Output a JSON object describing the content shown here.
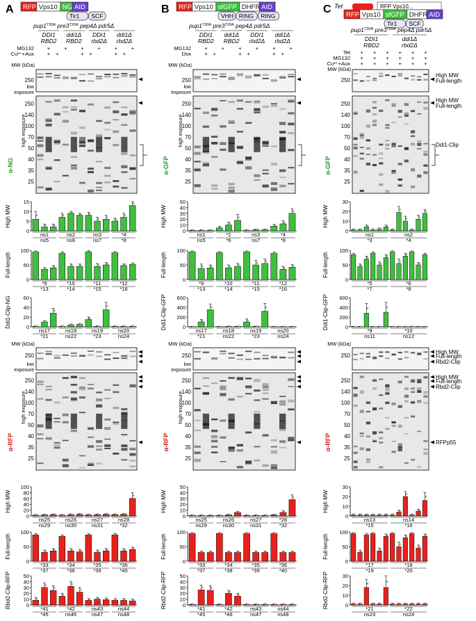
{
  "panels": [
    {
      "letter": "A",
      "construct": [
        {
          "text": "RFP",
          "color": "#e8211d",
          "text_color": "#ffffff"
        },
        {
          "text": "Vps10",
          "color": "#ffffff",
          "text_color": "#111111"
        },
        {
          "text": "NG",
          "color": "#3fbf3f",
          "text_color": "#ffffff"
        },
        {
          "text": "AID",
          "color": "#6a3fd0",
          "text_color": "#ffffff"
        }
      ],
      "extra_boxes": [
        "Tir1",
        "SCF"
      ],
      "strain": [
        "pup1",
        "T30A",
        " pre3",
        "T20A",
        " pep4Δ pdr5Δ"
      ],
      "groups": [
        "DDI1|RBD2",
        "ddi1Δ|RBD2",
        "DDI1|rbd2Δ",
        "ddi1Δ|rbd2Δ"
      ],
      "treatment_rows": [
        "MG132",
        "Cu²⁺+Aux"
      ],
      "treatment_signs": [
        [
          "",
          "+",
          "",
          "+"
        ],
        [
          "",
          "+",
          "+",
          ""
        ]
      ],
      "antibody_top": "α-NG",
      "antibody_bottom": "α-RFP",
      "mw_top": [
        "250"
      ],
      "mw_high": [
        "250",
        "140",
        "100",
        "70",
        "50",
        "40",
        "35",
        "25"
      ],
      "exposure_low": "low exposure",
      "exposure_high": "high exposure",
      "mw_label": "MW (kDa)",
      "band_labels_top": [],
      "band_labels_bottom": [],
      "charts": [
        {
          "ylabel": "High MW",
          "ymax": 15,
          "ticks": [
            0,
            5,
            10,
            15
          ],
          "color": "#3fbf3f",
          "values": [
            6,
            2,
            2,
            7,
            9,
            8,
            8,
            5,
            6,
            5,
            7,
            13
          ],
          "errors": [
            4,
            1.5,
            1.5,
            2,
            1,
            1,
            1.5,
            2,
            2,
            1.5,
            2,
            2
          ],
          "stats": [
            "ns1",
            "ns2",
            "ns3",
            "*4",
            "ns5",
            "ns6",
            "ns7",
            "*8"
          ]
        },
        {
          "ylabel": "Full-length",
          "ymax": 100,
          "ticks": [
            0,
            50,
            100
          ],
          "color": "#3fbf3f",
          "values": [
            95,
            35,
            40,
            90,
            45,
            45,
            95,
            45,
            50,
            92,
            48,
            52
          ],
          "errors": [
            3,
            6,
            8,
            5,
            8,
            8,
            4,
            10,
            8,
            4,
            6,
            5
          ],
          "stats": [
            "*9",
            "*10",
            "*11",
            "*12",
            "*13",
            "*14",
            "*15",
            "*16"
          ]
        },
        {
          "ylabel": "Ddi1-Clip-NG",
          "ymax": 60,
          "ticks": [
            0,
            20,
            40,
            60
          ],
          "color": "#3fbf3f",
          "values": [
            1,
            10,
            28,
            1,
            4,
            5,
            15,
            1,
            35,
            1,
            1,
            1
          ],
          "errors": [
            1,
            3,
            10,
            1,
            2,
            2,
            5,
            1,
            15,
            1,
            1,
            1
          ],
          "stats": [
            "ns17",
            "ns18",
            "ns19",
            "ns20",
            "*21",
            "ns22",
            "*23",
            "ns24"
          ]
        },
        {
          "ylabel": "High MW",
          "ymax": 100,
          "ticks": [
            0,
            20,
            40,
            60,
            80,
            100
          ],
          "color": "#e8211d",
          "values": [
            3,
            4,
            5,
            3,
            5,
            6,
            4,
            5,
            6,
            5,
            6,
            60
          ],
          "errors": [
            2,
            2,
            2,
            2,
            2,
            2,
            2,
            2,
            2,
            2,
            3,
            20
          ],
          "stats": [
            "ns25",
            "ns26",
            "ns27",
            "ns28",
            "ns29",
            "ns30",
            "ns31",
            "*32"
          ]
        },
        {
          "ylabel": "Full-length",
          "ymax": 100,
          "ticks": [
            0,
            50,
            100
          ],
          "color": "#e8211d",
          "values": [
            90,
            30,
            35,
            85,
            35,
            32,
            90,
            30,
            35,
            90,
            35,
            40
          ],
          "errors": [
            5,
            8,
            8,
            5,
            8,
            8,
            5,
            8,
            8,
            5,
            8,
            8
          ],
          "stats": [
            "*33",
            "*34",
            "*35",
            "*36",
            "*37",
            "*38",
            "*39",
            "*40"
          ]
        },
        {
          "ylabel": "Rbd2-Clip-RFP",
          "ymax": 50,
          "ticks": [
            0,
            10,
            20,
            30,
            40,
            50
          ],
          "color": "#e8211d",
          "values": [
            8,
            30,
            25,
            15,
            32,
            22,
            8,
            10,
            9,
            8,
            8,
            7
          ],
          "errors": [
            5,
            8,
            8,
            5,
            8,
            8,
            3,
            3,
            3,
            3,
            3,
            3
          ],
          "stats": [
            "*41",
            "*42",
            "ns43",
            "ns44",
            "*45",
            "ns46",
            "ns47",
            "ns48"
          ]
        }
      ]
    },
    {
      "letter": "B",
      "construct": [
        {
          "text": "RFP",
          "color": "#e8211d",
          "text_color": "#ffffff"
        },
        {
          "text": "Vps10",
          "color": "#ffffff",
          "text_color": "#111111"
        },
        {
          "text": "sfGFP",
          "color": "#3fbf3f",
          "text_color": "#ffffff"
        },
        {
          "text": "DHFR",
          "color": "#ffffff",
          "text_color": "#111111"
        },
        {
          "text": "AID",
          "color": "#6a3fd0",
          "text_color": "#ffffff"
        }
      ],
      "extra_boxes": [
        "VHH",
        "RING",
        "RING"
      ],
      "strain": [
        "pup1",
        "T30A",
        " pre3",
        "T20A",
        " pep4Δ pdr5Δ"
      ],
      "groups": [
        "DDI1|RBD2",
        "ddi1Δ|RBD2",
        "DDI1|rbd2Δ",
        "ddi1Δ|rbd2Δ"
      ],
      "treatment_rows": [
        "MG132",
        "Dox"
      ],
      "treatment_signs": [
        [
          "",
          "+",
          "",
          "+"
        ],
        [
          "",
          "+",
          "+",
          ""
        ]
      ],
      "antibody_top": "α-GFP",
      "antibody_bottom": "α-RFP",
      "mw_top": [
        "250"
      ],
      "mw_high": [
        "250",
        "140",
        "100",
        "70",
        "50",
        "40",
        "35",
        "25"
      ],
      "exposure_low": "low exposure",
      "exposure_high": "high exposure",
      "mw_label": "MW (kDa)",
      "band_labels_top": [],
      "band_labels_bottom": [],
      "charts": [
        {
          "ylabel": "High MW",
          "ymax": 50,
          "ticks": [
            0,
            10,
            20,
            30,
            40,
            50
          ],
          "color": "#3fbf3f",
          "values": [
            1,
            1,
            1,
            5,
            10,
            18,
            1,
            2,
            2,
            8,
            12,
            30
          ],
          "errors": [
            1,
            1,
            1,
            3,
            5,
            10,
            1,
            1,
            1,
            3,
            5,
            8
          ],
          "stats": [
            "ns1",
            "*2",
            "ns3",
            "*4",
            "ns5",
            "*6",
            "ns7",
            "*8"
          ]
        },
        {
          "ylabel": "Full-length",
          "ymax": 100,
          "ticks": [
            0,
            50,
            100
          ],
          "color": "#3fbf3f",
          "values": [
            95,
            38,
            40,
            92,
            40,
            45,
            95,
            50,
            55,
            90,
            35,
            42
          ],
          "errors": [
            3,
            15,
            10,
            4,
            10,
            10,
            3,
            15,
            15,
            4,
            10,
            10
          ],
          "stats": [
            "*9",
            "*10",
            "*11",
            "*12",
            "*13",
            "*14",
            "*15",
            "*16"
          ]
        },
        {
          "ylabel": "Ddi1-Clip-GFP",
          "ymax": 600,
          "ticks": [
            0,
            200,
            400,
            600
          ],
          "color": "#3fbf3f",
          "values": [
            5,
            100,
            350,
            5,
            10,
            10,
            100,
            10,
            320,
            5,
            5,
            5
          ],
          "errors": [
            5,
            50,
            120,
            5,
            5,
            5,
            60,
            5,
            160,
            5,
            5,
            5
          ],
          "stats": [
            "ns17",
            "ns18",
            "ns19",
            "ns20",
            "*21",
            "ns22",
            "*23",
            "ns24"
          ]
        },
        {
          "ylabel": "High MW",
          "ymax": 50,
          "ticks": [
            0,
            10,
            20,
            30,
            40,
            50
          ],
          "color": "#e8211d",
          "values": [
            1,
            1,
            1,
            1,
            2,
            6,
            1,
            1,
            1,
            2,
            6,
            28
          ],
          "errors": [
            1,
            1,
            1,
            1,
            1,
            2,
            1,
            1,
            1,
            1,
            3,
            8
          ],
          "stats": [
            "ns25",
            "ns26",
            "ns27",
            "*28",
            "ns29",
            "ns30",
            "ns31",
            "*32"
          ]
        },
        {
          "ylabel": "Full-length",
          "ymax": 100,
          "ticks": [
            0,
            50,
            100
          ],
          "color": "#e8211d",
          "values": [
            95,
            30,
            30,
            95,
            30,
            30,
            95,
            30,
            30,
            95,
            30,
            30
          ],
          "errors": [
            3,
            5,
            5,
            3,
            5,
            5,
            3,
            5,
            5,
            3,
            5,
            5
          ],
          "stats": [
            "*33",
            "*34",
            "*35",
            "*36",
            "*37",
            "*38",
            "*39",
            "*40"
          ]
        },
        {
          "ylabel": "Rbd2-Clip-RFP",
          "ymax": 50,
          "ticks": [
            0,
            10,
            20,
            30,
            40,
            50
          ],
          "color": "#e8211d",
          "values": [
            1,
            26,
            25,
            1,
            20,
            15,
            1,
            1,
            1,
            1,
            1,
            1
          ],
          "errors": [
            1,
            8,
            8,
            1,
            5,
            5,
            1,
            1,
            1,
            1,
            1,
            1
          ],
          "stats": [
            "*41",
            "*42",
            "ns43",
            "ns44",
            "*45",
            "*46",
            "ns47",
            "ns48"
          ]
        }
      ]
    },
    {
      "letter": "C",
      "construct": [
        {
          "text": "RFP",
          "color": "#e8211d",
          "text_color": "#ffffff"
        },
        {
          "text": "Vps10",
          "color": "#ffffff",
          "text_color": "#111111"
        },
        {
          "text": "sfGFP",
          "color": "#3fbf3f",
          "text_color": "#ffffff"
        },
        {
          "text": "DHFR",
          "color": "#ffffff",
          "text_color": "#111111"
        },
        {
          "text": "AID",
          "color": "#6a3fd0",
          "text_color": "#ffffff"
        }
      ],
      "extra_boxes": [
        "Tir1",
        "SCF"
      ],
      "tet_label": "Tet",
      "tet_target": "RFP Vps10...",
      "strain": [
        "pup1",
        "T30A",
        " pre3",
        "T20A",
        " pep4Δ pdr5Δ"
      ],
      "groups": [
        "DDI1|RBD2",
        "ddi1Δ|rbd2Δ"
      ],
      "treatment_rows": [
        "Tet",
        "MG132",
        "Cu²⁺+Aux"
      ],
      "treatment_signs": [
        [
          "",
          "+",
          "",
          "+"
        ],
        [
          "",
          "+",
          "",
          "+"
        ],
        [
          "",
          "+",
          "",
          "+"
        ]
      ],
      "antibody_top": "α-GFP",
      "antibody_bottom": "α-RFP",
      "mw_top": [
        "250"
      ],
      "mw_high": [
        "250",
        "140",
        "100",
        "70",
        "50",
        "40",
        "35",
        "25"
      ],
      "exposure_low": "",
      "exposure_high": "",
      "mw_label": "MW (kDa)",
      "band_labels_top": [
        "High MW",
        "Full-length",
        "High MW",
        "Full-length",
        "Ddi1-Clip"
      ],
      "band_labels_bottom": [
        "High MW",
        "Full-length",
        "Rbd2-Clip",
        "High MW",
        "Full-length",
        "Rbd2-Clip",
        "RFPp55"
      ],
      "charts": [
        {
          "ylabel": "High MW",
          "ymax": 30,
          "ticks": [
            0,
            10,
            20,
            30
          ],
          "color": "#3fbf3f",
          "values": [
            1,
            1,
            4,
            1,
            2,
            4,
            1,
            19,
            10,
            1,
            12,
            18
          ],
          "errors": [
            1,
            1,
            2,
            1,
            1,
            2,
            1,
            6,
            5,
            1,
            4,
            4
          ],
          "stats": [
            "ns1",
            "ns2",
            "*3",
            "*4"
          ]
        },
        {
          "ylabel": "Full-length",
          "ymax": 100,
          "ticks": [
            0,
            50,
            100
          ],
          "color": "#3fbf3f",
          "values": [
            85,
            45,
            70,
            90,
            50,
            75,
            95,
            55,
            80,
            95,
            50,
            85
          ],
          "errors": [
            5,
            8,
            10,
            5,
            10,
            10,
            3,
            15,
            10,
            3,
            8,
            5
          ],
          "stats": [
            "*5",
            "*6",
            "*7",
            "*8"
          ]
        },
        {
          "ylabel": "Ddi1-Clip-GFP",
          "ymax": 600,
          "ticks": [
            0,
            200,
            400,
            600
          ],
          "color": "#3fbf3f",
          "values": [
            5,
            5,
            280,
            5,
            5,
            300,
            5,
            5,
            5,
            5,
            5,
            5
          ],
          "errors": [
            5,
            5,
            200,
            5,
            5,
            200,
            5,
            5,
            5,
            5,
            5,
            5
          ],
          "stats": [
            "*9",
            "*10",
            "ns11",
            "ns12"
          ]
        },
        {
          "ylabel": "High MW",
          "ymax": 30,
          "ticks": [
            0,
            10,
            20,
            30
          ],
          "color": "#e8211d",
          "values": [
            1,
            1,
            1,
            1,
            1,
            1,
            1,
            4,
            20,
            1,
            5,
            16
          ],
          "errors": [
            1,
            1,
            1,
            1,
            1,
            1,
            1,
            2,
            5,
            1,
            2,
            8
          ],
          "stats": [
            "ns13",
            "ns14",
            "*15",
            "*16"
          ]
        },
        {
          "ylabel": "Full-length",
          "ymax": 100,
          "ticks": [
            0,
            50,
            100
          ],
          "color": "#e8211d",
          "values": [
            95,
            30,
            90,
            95,
            35,
            85,
            95,
            50,
            80,
            95,
            45,
            85
          ],
          "errors": [
            3,
            8,
            5,
            3,
            10,
            8,
            3,
            15,
            10,
            3,
            10,
            8
          ],
          "stats": [
            "*17",
            "*18",
            "*19",
            "*20"
          ]
        },
        {
          "ylabel": "Rbd2-Clip-RFP",
          "ymax": 30,
          "ticks": [
            0,
            10,
            20,
            30
          ],
          "color": "#e8211d",
          "values": [
            1,
            1,
            18,
            1,
            1,
            18,
            1,
            1,
            1,
            1,
            1,
            1
          ],
          "errors": [
            1,
            1,
            8,
            1,
            1,
            12,
            1,
            1,
            1,
            1,
            1,
            1
          ],
          "stats": [
            "*21",
            "*22",
            "ns23",
            "ns24"
          ]
        }
      ]
    }
  ]
}
